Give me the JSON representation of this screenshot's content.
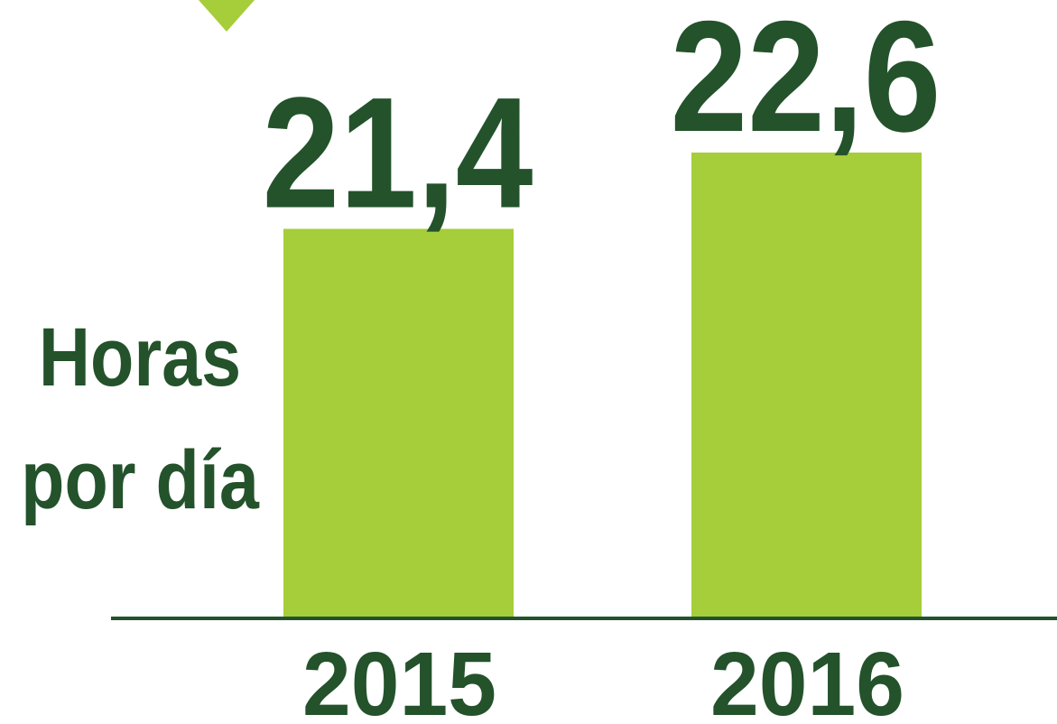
{
  "chart_data": {
    "type": "bar",
    "y_label": "Horas por día",
    "categories": [
      "2015",
      "2016"
    ],
    "values": [
      21.4,
      22.6
    ],
    "value_labels": [
      "21,4",
      "22,6"
    ],
    "color": "#a6cd3a",
    "ylim": [
      15.3,
      25
    ]
  }
}
